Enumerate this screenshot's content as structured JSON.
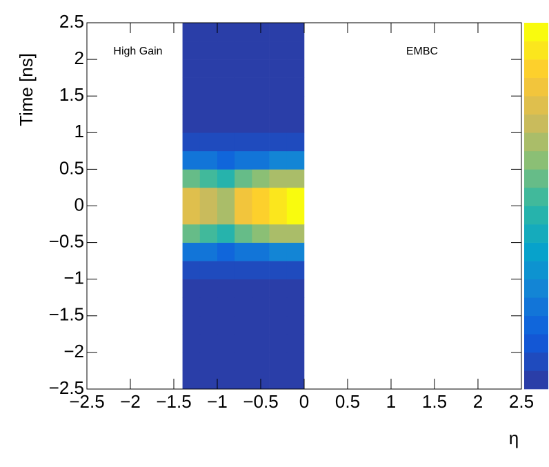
{
  "chart_data": {
    "type": "heatmap",
    "xlabel": "η",
    "ylabel": "Time [ns]",
    "annotations": [
      "High Gain",
      "EMBC"
    ],
    "xlim": [
      -2.5,
      2.5
    ],
    "ylim": [
      -2.5,
      2.5
    ],
    "zlim": [
      0,
      100
    ],
    "xticks": [
      {
        "value": -2.5,
        "label": "−2.5"
      },
      {
        "value": -2,
        "label": "−2"
      },
      {
        "value": -1.5,
        "label": "−1.5"
      },
      {
        "value": -1,
        "label": "−1"
      },
      {
        "value": -0.5,
        "label": "−0.5"
      },
      0,
      0.5,
      1,
      1.5,
      2,
      2.5
    ],
    "yticks": [
      {
        "value": -2.5,
        "label": "−2.5"
      },
      {
        "value": -2,
        "label": "−2"
      },
      {
        "value": -1.5,
        "label": "−1.5"
      },
      {
        "value": -1,
        "label": "−1"
      },
      {
        "value": -0.5,
        "label": "−0.5"
      },
      0,
      0.5,
      1,
      1.5,
      2,
      2.5
    ],
    "xbins": [
      -1.4,
      -1.2,
      -1.0,
      -0.8,
      -0.6,
      -0.4,
      -0.2,
      0.0
    ],
    "ybins": [
      -2.5,
      -2.25,
      -2.0,
      -1.75,
      -1.5,
      -1.25,
      -1.0,
      -0.75,
      -0.5,
      -0.25,
      0,
      0.25,
      0.5,
      0.75,
      1.0,
      1.25,
      1.5,
      1.75,
      2.0,
      2.25,
      2.5
    ],
    "z": [
      [
        1,
        1,
        1,
        1,
        1,
        1,
        1
      ],
      [
        1,
        1,
        1,
        1,
        1,
        1,
        1
      ],
      [
        1,
        1,
        1,
        1,
        1,
        1,
        1
      ],
      [
        1,
        1,
        1,
        1,
        1,
        1,
        1
      ],
      [
        1,
        1,
        1,
        1,
        1,
        1,
        1
      ],
      [
        1,
        1,
        1,
        1,
        1,
        1,
        1
      ],
      [
        3,
        3,
        3,
        3,
        4,
        4,
        4
      ],
      [
        20,
        19,
        18,
        21,
        23,
        24,
        25
      ],
      [
        56,
        53,
        49,
        60,
        63,
        67,
        70
      ],
      [
        80,
        75,
        70,
        85,
        90,
        95,
        100
      ],
      [
        80,
        75,
        70,
        85,
        90,
        95,
        100
      ],
      [
        56,
        53,
        49,
        60,
        63,
        67,
        70
      ],
      [
        20,
        19,
        18,
        21,
        23,
        24,
        25
      ],
      [
        3,
        3,
        3,
        3,
        4,
        4,
        4
      ],
      [
        1,
        1,
        1,
        1,
        1,
        1,
        1
      ],
      [
        1,
        1,
        1,
        1,
        1,
        1,
        1
      ],
      [
        1,
        1,
        1,
        1,
        1,
        1,
        1
      ],
      [
        1,
        1,
        1,
        1,
        1,
        1,
        1
      ],
      [
        1,
        1,
        1,
        1,
        1,
        1,
        1
      ],
      [
        1,
        1,
        1,
        1,
        1,
        1,
        1
      ]
    ],
    "palette": [
      "#2a3ea8",
      "#0f5cdd",
      "#1481d6",
      "#06a4ca",
      "#2eb7a4",
      "#87bf77",
      "#d1bb59",
      "#fec832",
      "#f9fb0e"
    ]
  }
}
